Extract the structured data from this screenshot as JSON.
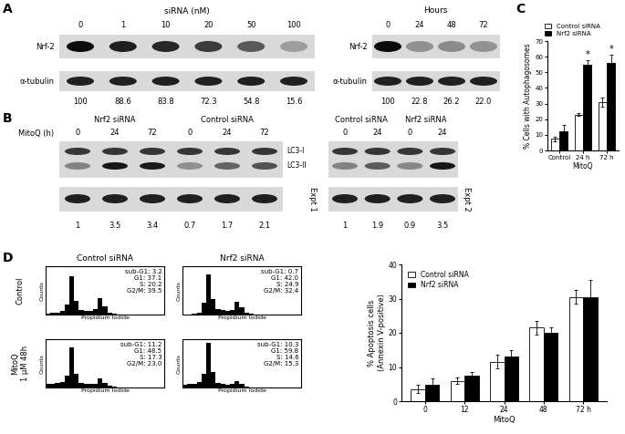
{
  "panel_labels": [
    "A",
    "B",
    "C",
    "D"
  ],
  "blots": [
    {
      "header": "siRNA (nM)",
      "lanes": [
        "0",
        "1",
        "10",
        "20",
        "50",
        "100"
      ],
      "rows": [
        "Nrf-2",
        "α-tubulin"
      ],
      "quantification": [
        100,
        88.6,
        83.8,
        72.3,
        54.8,
        15.6
      ]
    },
    {
      "header": "Hours",
      "lanes": [
        "0",
        "24",
        "48",
        "72"
      ],
      "rows": [
        "Nrf-2",
        "α-tubulin"
      ],
      "quantification": [
        100,
        22.8,
        26.2,
        22.0
      ]
    },
    {
      "lane_header": "MitoQ (h)",
      "groups": [
        {
          "label": "Nrf2 siRNA",
          "lanes": [
            "0",
            "24",
            "72"
          ]
        },
        {
          "label": "Control siRNA",
          "lanes": [
            "0",
            "24",
            "72"
          ]
        }
      ],
      "rows": [
        "LC3-I",
        "LC3-II"
      ],
      "side_label": "Expt 1",
      "quantification": [
        1,
        3.5,
        3.4,
        0.7,
        1.7,
        2.1
      ]
    },
    {
      "groups": [
        {
          "label": "Control siRNA",
          "lanes": [
            "0",
            "24"
          ]
        },
        {
          "label": "Nrf2 siRNA",
          "lanes": [
            "0",
            "24"
          ]
        }
      ],
      "side_label": "Expt 2",
      "quantification": [
        1,
        1.9,
        0.9,
        3.5
      ]
    }
  ],
  "flow": {
    "columns": [
      "Control siRNA",
      "Nrf2 siRNA"
    ],
    "rows": [
      "Control",
      "MitoQ\n1 μM 48h"
    ],
    "x_label": "Propidium Iodide",
    "y_label": "Counts",
    "xlim": [
      0,
      1000
    ],
    "ylim": [
      0,
      120
    ],
    "tick_labels": false,
    "bins": [
      0,
      40,
      80,
      120,
      160,
      200,
      240,
      280,
      320,
      360,
      400,
      440,
      480,
      520,
      560,
      600,
      640,
      680,
      720,
      760,
      800,
      840,
      880,
      920,
      960,
      1000
    ],
    "histograms": [
      [
        {
          "counts": [
            3,
            4,
            5,
            8,
            25,
            95,
            35,
            12,
            10,
            10,
            14,
            40,
            20,
            5,
            2,
            1,
            1,
            0,
            0,
            0,
            0,
            0,
            0,
            0,
            0
          ],
          "stats": [
            "sub-G1: 3.2",
            "G1: 37.1",
            "S: 20.2",
            "G2/M: 39.5"
          ]
        },
        {
          "counts": [
            1,
            1,
            2,
            5,
            30,
            100,
            38,
            14,
            11,
            10,
            12,
            32,
            18,
            4,
            2,
            1,
            0,
            0,
            0,
            0,
            0,
            0,
            0,
            0,
            0
          ],
          "stats": [
            "sub-G1: 0.7",
            "G1: 42.0",
            "S: 24.9",
            "G2/M: 32.4"
          ]
        }
      ],
      [
        {
          "counts": [
            8,
            10,
            12,
            14,
            30,
            100,
            35,
            12,
            9,
            8,
            10,
            22,
            12,
            4,
            2,
            1,
            0,
            0,
            0,
            0,
            0,
            0,
            0,
            0,
            0
          ],
          "stats": [
            "sub-G1: 11.2",
            "G1: 48.5",
            "S: 17.3",
            "G2/M: 23.0"
          ]
        },
        {
          "counts": [
            7,
            9,
            10,
            13,
            35,
            110,
            38,
            12,
            8,
            7,
            8,
            16,
            9,
            3,
            1,
            1,
            0,
            0,
            0,
            0,
            0,
            0,
            0,
            0,
            0
          ],
          "stats": [
            "sub-G1: 10.3",
            "G1: 59.8",
            "S: 14.6",
            "G2/M: 15.3"
          ]
        }
      ]
    ]
  },
  "chart_data": [
    {
      "type": "bar",
      "categories": [
        "Control",
        "24 h",
        "72 h"
      ],
      "x_label": "MitoQ",
      "y_label": "% Cells with Autophagosomes",
      "ylim": [
        0,
        70
      ],
      "yticks": [
        0,
        10,
        20,
        30,
        40,
        50,
        60,
        70
      ],
      "series": [
        {
          "name": "Control siRNA",
          "color": "#ffffff",
          "values": [
            7.5,
            23,
            31
          ],
          "errors": [
            1.5,
            0.8,
            3
          ]
        },
        {
          "name": "Nrf2 siRNA",
          "color": "#000000",
          "values": [
            12,
            55,
            56
          ],
          "errors": [
            4.5,
            3,
            5.5
          ]
        }
      ],
      "annotations": [
        {
          "text": "*",
          "category": "24 h",
          "series": "Nrf2 siRNA"
        },
        {
          "text": "*",
          "category": "72 h",
          "series": "Nrf2 siRNA"
        }
      ]
    },
    {
      "type": "bar",
      "categories": [
        "0",
        "12",
        "24",
        "48",
        "72 h"
      ],
      "x_label": "MitoQ",
      "y_label": "% Apoptosis cells\n(Annexin V-positive)",
      "ylim": [
        0,
        40
      ],
      "yticks": [
        0,
        10,
        20,
        30,
        40
      ],
      "legend": "upper left",
      "series": [
        {
          "name": "Control siRNA",
          "color": "#ffffff",
          "values": [
            3.5,
            6,
            11.5,
            21.5,
            30.5
          ],
          "errors": [
            1.2,
            1,
            2,
            2,
            2
          ]
        },
        {
          "name": "Nrf2 siRNA",
          "color": "#000000",
          "values": [
            4.8,
            7.5,
            13,
            20,
            30.5
          ],
          "errors": [
            1.8,
            1,
            2,
            1.5,
            5
          ]
        }
      ]
    }
  ]
}
